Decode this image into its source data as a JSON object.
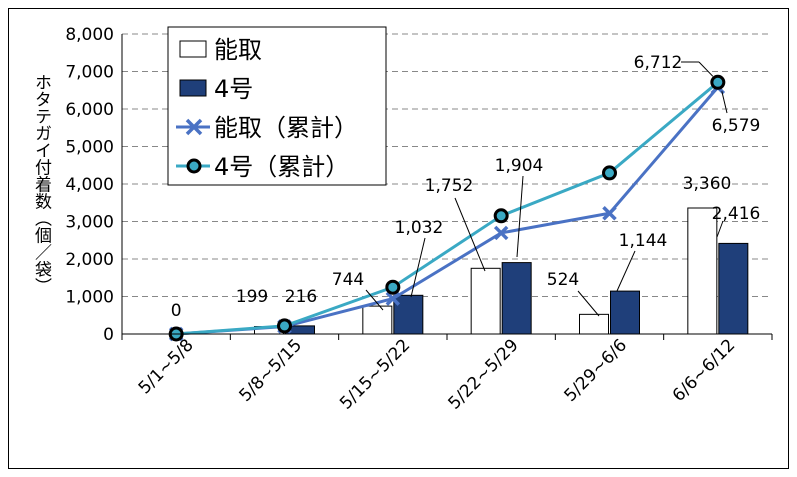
{
  "chart_data": {
    "type": "bar",
    "categories": [
      "5/1~5/8",
      "5/8~5/15",
      "5/15~5/22",
      "5/22~5/29",
      "5/29~6/6",
      "6/6~6/12"
    ],
    "ylabel": "ホタテガイ付着数（個／袋）",
    "ylim": [
      0,
      8000
    ],
    "yticks": [
      "0",
      "1,000",
      "2,000",
      "3,000",
      "4,000",
      "5,000",
      "6,000",
      "7,000",
      "8,000"
    ],
    "grid": true,
    "legend_position": "top-left",
    "series": [
      {
        "name": "能取",
        "kind": "bar",
        "color": "#ffffff",
        "values": [
          0,
          199,
          744,
          1752,
          524,
          3360
        ],
        "labels": [
          "0",
          "199",
          "744",
          "1,752",
          "524",
          "3,360"
        ]
      },
      {
        "name": "4号",
        "kind": "bar",
        "color": "#1f3f7a",
        "values": [
          0,
          216,
          1032,
          1904,
          1144,
          2416
        ],
        "labels": [
          "",
          "216",
          "1,032",
          "1,904",
          "1,144",
          "2,416"
        ]
      },
      {
        "name": "能取（累計）",
        "kind": "line",
        "marker": "x",
        "color": "#4a72c4",
        "values": [
          0,
          199,
          943,
          2695,
          3219,
          6579
        ],
        "labels": [
          "",
          "",
          "",
          "",
          "",
          "6,579"
        ]
      },
      {
        "name": "4号（累計）",
        "kind": "line",
        "marker": "circle",
        "color": "#3aa9c4",
        "values": [
          0,
          216,
          1248,
          3152,
          4296,
          6712
        ],
        "labels": [
          "",
          "",
          "",
          "",
          "",
          "6,712"
        ]
      }
    ]
  }
}
